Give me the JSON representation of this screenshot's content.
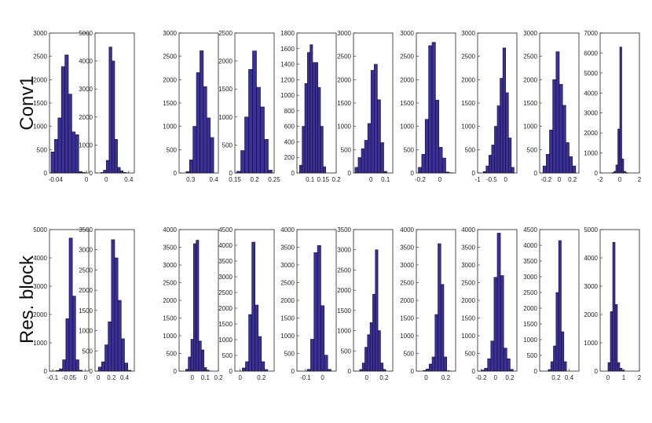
{
  "row_labels": [
    "Conv1",
    "Res. block"
  ],
  "chart_data": [
    {
      "type": "histogram",
      "color": "#3b2f9e",
      "bins": [
        -0.046,
        -0.0415,
        -0.037,
        -0.0325,
        -0.028,
        -0.0235,
        -0.019,
        -0.0145,
        -0.01,
        -0.0055,
        -0.001
      ],
      "values": [
        450,
        720,
        1180,
        2280,
        2530,
        1690,
        880,
        820,
        30,
        10
      ],
      "xlim": [
        -0.048,
        0.003
      ],
      "xticks": [
        -0.04,
        0
      ],
      "ylim": [
        0,
        3000
      ],
      "yticks": [
        0,
        500,
        1000,
        1500,
        2000,
        2500,
        3000
      ]
    },
    {
      "type": "histogram",
      "color": "#3b2f9e",
      "bins": [
        -0.1,
        -0.05,
        0,
        0.05,
        0.1,
        0.15,
        0.2,
        0.25,
        0.3,
        0.35,
        0.4
      ],
      "values": [
        20,
        100,
        450,
        4500,
        4000,
        1200,
        200,
        80,
        20,
        5
      ],
      "xlim": [
        -0.2,
        0.5
      ],
      "xticks": [
        0,
        0.4
      ],
      "ylim": [
        0,
        5000
      ],
      "yticks": [
        0,
        1000,
        2000,
        3000,
        4000,
        5000
      ]
    },
    {
      "type": "histogram",
      "color": "#3b2f9e",
      "bins": [
        0.28,
        0.295,
        0.31,
        0.325,
        0.34,
        0.355,
        0.37,
        0.385,
        0.4
      ],
      "values": [
        30,
        280,
        1000,
        2150,
        2620,
        1850,
        1180,
        760
      ],
      "xlim": [
        0.25,
        0.42
      ],
      "xticks": [
        0.3,
        0.4
      ],
      "ylim": [
        0,
        3000
      ],
      "yticks": [
        0,
        500,
        1000,
        1500,
        2000,
        2500,
        3000
      ]
    },
    {
      "type": "histogram",
      "color": "#3b2f9e",
      "bins": [
        0.155,
        0.165,
        0.175,
        0.185,
        0.195,
        0.205,
        0.215,
        0.225,
        0.235,
        0.245
      ],
      "values": [
        30,
        400,
        1000,
        1850,
        2180,
        1530,
        1180,
        600,
        50
      ],
      "xlim": [
        0.15,
        0.25
      ],
      "xticks": [
        0.15,
        0.2,
        0.25
      ],
      "ylim": [
        0,
        2500
      ],
      "yticks": [
        0,
        500,
        1000,
        1500,
        2000,
        2500
      ]
    },
    {
      "type": "histogram",
      "color": "#3b2f9e",
      "bins": [
        0.06,
        0.07,
        0.08,
        0.09,
        0.1,
        0.11,
        0.12,
        0.13,
        0.14,
        0.15,
        0.16
      ],
      "values": [
        100,
        600,
        1150,
        1550,
        1650,
        1420,
        1420,
        1100,
        600,
        80
      ],
      "xlim": [
        0.05,
        0.2
      ],
      "xticks": [
        0.1,
        0.15,
        0.2
      ],
      "ylim": [
        0,
        1800
      ],
      "yticks": [
        0,
        200,
        400,
        600,
        800,
        1000,
        1200,
        1400,
        1600,
        1800
      ]
    },
    {
      "type": "histogram",
      "color": "#3b2f9e",
      "bins": [
        -0.11,
        -0.088,
        -0.066,
        -0.044,
        -0.022,
        0,
        0.022,
        0.044,
        0.066,
        0.088,
        0.11
      ],
      "values": [
        120,
        330,
        520,
        700,
        1060,
        2200,
        2330,
        1570,
        650,
        30
      ],
      "xlim": [
        -0.12,
        0.15
      ],
      "xticks": [
        0,
        0.1
      ],
      "ylim": [
        0,
        3000
      ],
      "yticks": [
        0,
        500,
        1000,
        1500,
        2000,
        2500,
        3000
      ]
    },
    {
      "type": "histogram",
      "color": "#3b2f9e",
      "bins": [
        -0.22,
        -0.185,
        -0.15,
        -0.115,
        -0.08,
        -0.045,
        -0.01,
        0.025,
        0.06,
        0.095,
        0.13
      ],
      "values": [
        120,
        400,
        1150,
        2730,
        2800,
        1560,
        550,
        320,
        20,
        5
      ],
      "xlim": [
        -0.24,
        0.16
      ],
      "xticks": [
        -0.2,
        0
      ],
      "ylim": [
        0,
        3000
      ],
      "yticks": [
        0,
        500,
        1000,
        1500,
        2000,
        2500,
        3000
      ]
    },
    {
      "type": "histogram",
      "color": "#3b2f9e",
      "bins": [
        -0.8,
        -0.7,
        -0.6,
        -0.5,
        -0.4,
        -0.3,
        -0.2,
        -0.1,
        0,
        0.1,
        0.2,
        0.3
      ],
      "values": [
        30,
        150,
        380,
        600,
        1000,
        1440,
        2030,
        2680,
        1720,
        750,
        120
      ],
      "xlim": [
        -1,
        0.4
      ],
      "xticks": [
        -1,
        -0.5,
        0
      ],
      "ylim": [
        0,
        3000
      ],
      "yticks": [
        0,
        500,
        1000,
        1500,
        2000,
        2500,
        3000
      ]
    },
    {
      "type": "histogram",
      "color": "#3b2f9e",
      "bins": [
        -0.25,
        -0.2,
        -0.15,
        -0.1,
        -0.05,
        0,
        0.05,
        0.1,
        0.15,
        0.2,
        0.25
      ],
      "values": [
        150,
        400,
        920,
        2000,
        2600,
        1900,
        1450,
        650,
        350,
        150
      ],
      "xlim": [
        -0.3,
        0.3
      ],
      "xticks": [
        -0.2,
        0,
        0.2
      ],
      "ylim": [
        0,
        3000
      ],
      "yticks": [
        0,
        500,
        1000,
        1500,
        2000,
        2500,
        3000
      ]
    },
    {
      "type": "histogram",
      "color": "#3b2f9e",
      "bins": [
        -0.8,
        -0.6,
        -0.4,
        -0.2,
        0,
        0.2,
        0.4,
        0.6,
        0.8
      ],
      "values": [
        20,
        80,
        400,
        2200,
        6300,
        700,
        80,
        20
      ],
      "xlim": [
        -2,
        2
      ],
      "xticks": [
        -2,
        0,
        2
      ],
      "ylim": [
        0,
        7000
      ],
      "yticks": [
        0,
        1000,
        2000,
        3000,
        4000,
        5000,
        6000,
        7000
      ]
    },
    {
      "type": "histogram",
      "color": "#3b2f9e",
      "bins": [
        -0.09,
        -0.08,
        -0.07,
        -0.06,
        -0.05,
        -0.04,
        -0.03,
        -0.02,
        -0.01
      ],
      "values": [
        20,
        80,
        400,
        1850,
        4700,
        2650,
        400,
        30
      ],
      "xlim": [
        -0.11,
        0.01
      ],
      "xticks": [
        -0.1,
        -0.05,
        0
      ],
      "ylim": [
        0,
        5000
      ],
      "yticks": [
        0,
        1000,
        2000,
        3000,
        4000,
        5000
      ]
    },
    {
      "type": "histogram",
      "color": "#3b2f9e",
      "bins": [
        0,
        0.05,
        0.1,
        0.15,
        0.2,
        0.25,
        0.3,
        0.35,
        0.4,
        0.45,
        0.5
      ],
      "values": [
        100,
        230,
        650,
        1220,
        3250,
        2800,
        1750,
        800,
        200,
        20
      ],
      "xlim": [
        -0.05,
        0.55
      ],
      "xticks": [
        0,
        0.2,
        0.4
      ],
      "ylim": [
        0,
        3500
      ],
      "yticks": [
        0,
        500,
        1000,
        1500,
        2000,
        2500,
        3000,
        3500
      ]
    },
    {
      "type": "histogram",
      "color": "#3b2f9e",
      "bins": [
        -0.05,
        -0.03,
        -0.01,
        0.01,
        0.03,
        0.05,
        0.07,
        0.09,
        0.11,
        0.13
      ],
      "values": [
        50,
        400,
        900,
        3600,
        3700,
        850,
        600,
        100,
        30
      ],
      "xlim": [
        -0.1,
        0.2
      ],
      "xticks": [
        0,
        0.1,
        0.2
      ],
      "ylim": [
        0,
        4000
      ],
      "yticks": [
        0,
        500,
        1000,
        1500,
        2000,
        2500,
        3000,
        3500,
        4000
      ]
    },
    {
      "type": "histogram",
      "color": "#3b2f9e",
      "bins": [
        0.02,
        0.05,
        0.08,
        0.11,
        0.14,
        0.17,
        0.2,
        0.23,
        0.26
      ],
      "values": [
        100,
        300,
        1800,
        4100,
        2100,
        1100,
        300,
        50
      ],
      "xlim": [
        -0.05,
        0.32
      ],
      "xticks": [
        0,
        0.2
      ],
      "ylim": [
        0,
        4500
      ],
      "yticks": [
        0,
        500,
        1000,
        1500,
        2000,
        2500,
        3000,
        3500,
        4000,
        4500
      ]
    },
    {
      "type": "histogram",
      "color": "#3b2f9e",
      "bins": [
        -0.09,
        -0.07,
        -0.05,
        -0.03,
        -0.01,
        0.01,
        0.03,
        0.05
      ],
      "values": [
        50,
        900,
        3350,
        3550,
        1850,
        450,
        50
      ],
      "xlim": [
        -0.15,
        0.08
      ],
      "xticks": [
        -0.1,
        0
      ],
      "ylim": [
        0,
        4000
      ],
      "yticks": [
        0,
        500,
        1000,
        1500,
        2000,
        2500,
        3000,
        3500,
        4000
      ]
    },
    {
      "type": "histogram",
      "color": "#3b2f9e",
      "bins": [
        -0.08,
        -0.05,
        -0.02,
        0.01,
        0.04,
        0.07,
        0.1,
        0.13,
        0.16,
        0.19,
        0.22
      ],
      "values": [
        40,
        200,
        590,
        900,
        1200,
        1900,
        3000,
        1000,
        200,
        40
      ],
      "xlim": [
        -0.15,
        0.3
      ],
      "xticks": [
        0,
        0.2
      ],
      "ylim": [
        0,
        3500
      ],
      "yticks": [
        0,
        500,
        1000,
        1500,
        2000,
        2500,
        3000,
        3500
      ]
    },
    {
      "type": "histogram",
      "color": "#3b2f9e",
      "bins": [
        -0.03,
        0,
        0.03,
        0.06,
        0.09,
        0.12,
        0.15,
        0.18,
        0.21,
        0.24
      ],
      "values": [
        20,
        60,
        200,
        400,
        1600,
        3600,
        2450,
        400,
        10
      ],
      "xlim": [
        -0.1,
        0.3
      ],
      "xticks": [
        0,
        0.2
      ],
      "ylim": [
        0,
        4000
      ],
      "yticks": [
        0,
        500,
        1000,
        1500,
        2000,
        2500,
        3000,
        3500,
        4000
      ]
    },
    {
      "type": "histogram",
      "color": "#3b2f9e",
      "bins": [
        -0.2,
        -0.155,
        -0.11,
        -0.065,
        -0.02,
        0.025,
        0.07,
        0.115,
        0.16,
        0.205,
        0.25
      ],
      "values": [
        30,
        80,
        350,
        850,
        2650,
        3900,
        2700,
        650,
        350,
        50
      ],
      "xlim": [
        -0.25,
        0.3
      ],
      "xticks": [
        -0.2,
        0,
        0.2
      ],
      "ylim": [
        0,
        4000
      ],
      "yticks": [
        0,
        500,
        1000,
        1500,
        2000,
        2500,
        3000,
        3500,
        4000
      ]
    },
    {
      "type": "histogram",
      "color": "#3b2f9e",
      "bins": [
        0.08,
        0.12,
        0.16,
        0.2,
        0.24,
        0.28,
        0.32,
        0.36
      ],
      "values": [
        50,
        300,
        800,
        2500,
        4150,
        1250,
        300
      ],
      "xlim": [
        -0.05,
        0.55
      ],
      "xticks": [
        0.2,
        0.4
      ],
      "ylim": [
        0,
        4500
      ],
      "yticks": [
        0,
        500,
        1000,
        1500,
        2000,
        2500,
        3000,
        3500,
        4000,
        4500
      ]
    },
    {
      "type": "histogram",
      "color": "#3b2f9e",
      "bins": [
        0,
        0.15,
        0.3,
        0.45,
        0.6,
        0.75,
        0.9,
        1.05
      ],
      "values": [
        300,
        2100,
        4550,
        2350,
        300,
        100,
        30
      ],
      "xlim": [
        -0.5,
        2
      ],
      "xticks": [
        0,
        1,
        2
      ],
      "ylim": [
        0,
        5000
      ],
      "yticks": [
        0,
        1000,
        2000,
        3000,
        4000,
        5000
      ]
    }
  ]
}
